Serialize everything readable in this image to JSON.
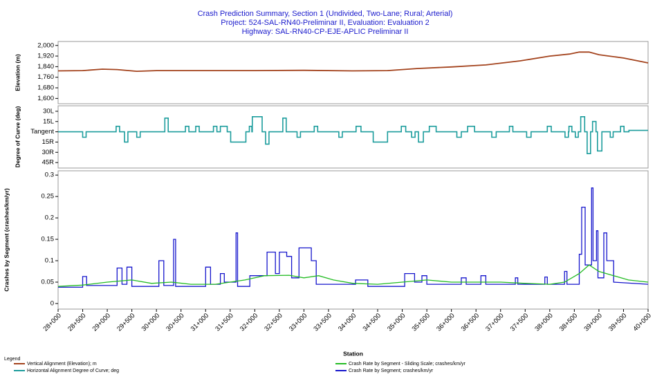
{
  "legend_title": "Legend",
  "chart_data": [
    {
      "type": "line",
      "title": "Crash Prediction Summary, Section 1 (Undivided, Two-Lane; Rural; Arterial)",
      "subtitle": [
        "Project: 524-SAL-RN40-Preliminar II, Evaluation: Evaluation 2",
        "Highway: SAL-RN40-CP-EJE-APLIC Preliminar II"
      ],
      "ylabel": "Elevation (m)",
      "xlim": [
        28000,
        40000
      ],
      "ylim": [
        1560,
        2030
      ],
      "yticks": [
        {
          "value": 1600,
          "label": "1,600"
        },
        {
          "value": 1680,
          "label": "1,680"
        },
        {
          "value": 1760,
          "label": "1,760"
        },
        {
          "value": 1840,
          "label": "1,840"
        },
        {
          "value": 1920,
          "label": "1,920"
        },
        {
          "value": 2000,
          "label": "2,000"
        }
      ],
      "series": [
        {
          "name": "Vertical Alignment (Elevation); m",
          "color": "#a3421c",
          "x": [
            28000,
            28500,
            28900,
            29200,
            29600,
            30000,
            31000,
            32000,
            33000,
            34000,
            34700,
            35300,
            36000,
            36700,
            37400,
            38000,
            38400,
            38600,
            38800,
            39000,
            39500,
            40000
          ],
          "values": [
            1808,
            1810,
            1821,
            1818,
            1805,
            1810,
            1810,
            1810,
            1812,
            1808,
            1810,
            1826,
            1838,
            1853,
            1884,
            1920,
            1935,
            1950,
            1950,
            1930,
            1905,
            1868
          ]
        }
      ]
    },
    {
      "type": "line",
      "ylabel": "Degree of Curve (deg)",
      "xlim": [
        28000,
        40000
      ],
      "ylim": [
        -53,
        38
      ],
      "yticks": [
        {
          "value": -45,
          "label": "45R"
        },
        {
          "value": -30,
          "label": "30R"
        },
        {
          "value": -15,
          "label": "15R"
        },
        {
          "value": 0,
          "label": "Tangent"
        },
        {
          "value": 15,
          "label": "15L"
        },
        {
          "value": 30,
          "label": "30L"
        }
      ],
      "series": [
        {
          "name": "Horizontal Alignment Degree of Curve; deg",
          "color": "#1b9c9c",
          "x": [
            28000,
            28500,
            28500,
            28570,
            28570,
            29180,
            29180,
            29250,
            29250,
            29350,
            29350,
            29420,
            29420,
            29600,
            29600,
            29670,
            29670,
            30170,
            30170,
            30240,
            30240,
            30590,
            30590,
            30660,
            30660,
            30800,
            30800,
            30870,
            30870,
            31160,
            31160,
            31230,
            31230,
            31300,
            31300,
            31440,
            31440,
            31510,
            31510,
            31820,
            31820,
            31890,
            31890,
            31940,
            31940,
            31950,
            31950,
            32150,
            32150,
            32220,
            32220,
            32290,
            32290,
            32570,
            32570,
            32640,
            32640,
            32860,
            32860,
            32930,
            32930,
            33210,
            33210,
            33280,
            33280,
            33710,
            33710,
            33780,
            33780,
            34060,
            34060,
            34160,
            34160,
            34410,
            34410,
            34700,
            34700,
            34980,
            34980,
            35070,
            35070,
            35190,
            35190,
            35260,
            35260,
            35330,
            35330,
            35430,
            35430,
            35550,
            35550,
            35690,
            35690,
            36110,
            36110,
            36200,
            36200,
            36330,
            36330,
            36470,
            36470,
            36820,
            36820,
            36910,
            36910,
            37180,
            37180,
            37250,
            37250,
            37530,
            37530,
            37620,
            37620,
            37950,
            37950,
            38030,
            38030,
            38310,
            38310,
            38380,
            38380,
            38390,
            38390,
            38450,
            38450,
            38520,
            38520,
            38580,
            38580,
            38630,
            38630,
            38710,
            38710,
            38760,
            38760,
            38830,
            38830,
            38870,
            38870,
            38940,
            38940,
            38970,
            38970,
            39060,
            39060,
            39230,
            39230,
            39290,
            39290,
            39440,
            39440,
            39510,
            39510,
            39610,
            39610,
            40000
          ],
          "values": [
            0,
            0,
            -8,
            -8,
            0,
            0,
            8,
            8,
            0,
            0,
            -15,
            -15,
            0,
            0,
            -8,
            -8,
            0,
            0,
            20,
            20,
            0,
            0,
            8,
            8,
            0,
            0,
            8,
            8,
            0,
            0,
            8,
            8,
            0,
            0,
            8,
            8,
            0,
            0,
            -15,
            -15,
            0,
            0,
            8,
            8,
            0,
            0,
            22,
            22,
            0,
            0,
            -18,
            -18,
            0,
            0,
            20,
            20,
            0,
            0,
            -8,
            -8,
            0,
            0,
            8,
            8,
            0,
            0,
            -8,
            -8,
            0,
            0,
            8,
            8,
            0,
            0,
            -15,
            -15,
            0,
            0,
            8,
            8,
            0,
            0,
            -8,
            -8,
            0,
            0,
            -15,
            -15,
            0,
            0,
            8,
            8,
            0,
            0,
            -8,
            -8,
            0,
            0,
            8,
            8,
            0,
            0,
            -8,
            -8,
            0,
            0,
            8,
            8,
            0,
            0,
            -8,
            -8,
            0,
            0,
            8,
            8,
            0,
            0,
            -8,
            -8,
            0,
            0,
            8,
            8,
            0,
            0,
            -8,
            -8,
            0,
            0,
            22,
            22,
            0,
            0,
            -32,
            -32,
            0,
            0,
            15,
            15,
            0,
            0,
            -28,
            -28,
            0,
            0,
            -8,
            -8,
            0,
            0,
            8,
            8,
            0,
            0,
            2,
            2
          ]
        }
      ]
    },
    {
      "type": "line",
      "ylabel": "Crashes by Segment (crashes/km/yr)",
      "xlabel": "Station",
      "xlim": [
        28000,
        40000
      ],
      "ylim": [
        -0.013,
        0.31
      ],
      "yticks": [
        0,
        0.05,
        0.1,
        0.15,
        0.2,
        0.25,
        0.3
      ],
      "xticks": [
        {
          "value": 28000,
          "label": "28+000"
        },
        {
          "value": 28500,
          "label": "28+500"
        },
        {
          "value": 29000,
          "label": "29+000"
        },
        {
          "value": 29500,
          "label": "29+500"
        },
        {
          "value": 30000,
          "label": "30+000"
        },
        {
          "value": 30500,
          "label": "30+500"
        },
        {
          "value": 31000,
          "label": "31+000"
        },
        {
          "value": 31500,
          "label": "31+500"
        },
        {
          "value": 32000,
          "label": "32+000"
        },
        {
          "value": 32500,
          "label": "32+500"
        },
        {
          "value": 33000,
          "label": "33+000"
        },
        {
          "value": 33500,
          "label": "33+500"
        },
        {
          "value": 34000,
          "label": "34+000"
        },
        {
          "value": 34500,
          "label": "34+500"
        },
        {
          "value": 35000,
          "label": "35+000"
        },
        {
          "value": 35500,
          "label": "35+500"
        },
        {
          "value": 36000,
          "label": "36+000"
        },
        {
          "value": 36500,
          "label": "36+500"
        },
        {
          "value": 37000,
          "label": "37+000"
        },
        {
          "value": 37500,
          "label": "37+500"
        },
        {
          "value": 38000,
          "label": "38+000"
        },
        {
          "value": 38500,
          "label": "38+500"
        },
        {
          "value": 39000,
          "label": "39+000"
        },
        {
          "value": 39500,
          "label": "39+500"
        },
        {
          "value": 40000,
          "label": "40+000"
        }
      ],
      "series": [
        {
          "name": "Crash Rate by Segment; crashes/km/yr",
          "color": "#1414cc",
          "x": [
            28000,
            28500,
            28500,
            28580,
            28580,
            29200,
            29200,
            29300,
            29300,
            29400,
            29400,
            29500,
            29500,
            30050,
            30050,
            30150,
            30150,
            30350,
            30350,
            30390,
            30390,
            31000,
            31000,
            31100,
            31100,
            31300,
            31300,
            31380,
            31380,
            31620,
            31620,
            31650,
            31650,
            31900,
            31900,
            32250,
            32250,
            32420,
            32420,
            32500,
            32500,
            32650,
            32650,
            32750,
            32750,
            32900,
            32900,
            33150,
            33150,
            33250,
            33250,
            34050,
            34050,
            34300,
            34300,
            35050,
            35050,
            35250,
            35250,
            35400,
            35400,
            35500,
            35500,
            36200,
            36200,
            36300,
            36300,
            36600,
            36600,
            36700,
            36700,
            37300,
            37300,
            37350,
            37350,
            37900,
            37900,
            37950,
            37950,
            38300,
            38300,
            38350,
            38350,
            38600,
            38600,
            38650,
            38650,
            38720,
            38720,
            38850,
            38850,
            38880,
            38880,
            38950,
            38950,
            38980,
            38980,
            39100,
            39100,
            39160,
            39160,
            39300,
            39300,
            40000
          ],
          "values": [
            0.038,
            0.038,
            0.063,
            0.063,
            0.042,
            0.042,
            0.083,
            0.083,
            0.045,
            0.045,
            0.085,
            0.085,
            0.04,
            0.04,
            0.1,
            0.1,
            0.042,
            0.042,
            0.15,
            0.15,
            0.04,
            0.04,
            0.085,
            0.085,
            0.045,
            0.045,
            0.07,
            0.07,
            0.05,
            0.05,
            0.165,
            0.165,
            0.04,
            0.04,
            0.065,
            0.065,
            0.12,
            0.12,
            0.07,
            0.07,
            0.12,
            0.12,
            0.11,
            0.11,
            0.06,
            0.06,
            0.13,
            0.13,
            0.1,
            0.1,
            0.045,
            0.045,
            0.055,
            0.055,
            0.04,
            0.04,
            0.07,
            0.07,
            0.05,
            0.05,
            0.065,
            0.065,
            0.045,
            0.045,
            0.06,
            0.06,
            0.045,
            0.045,
            0.065,
            0.065,
            0.045,
            0.045,
            0.06,
            0.06,
            0.045,
            0.045,
            0.062,
            0.062,
            0.045,
            0.045,
            0.075,
            0.075,
            0.045,
            0.045,
            0.115,
            0.115,
            0.225,
            0.225,
            0.09,
            0.09,
            0.27,
            0.27,
            0.1,
            0.1,
            0.17,
            0.17,
            0.06,
            0.06,
            0.165,
            0.165,
            0.1,
            0.1,
            0.05,
            0.045
          ]
        },
        {
          "name": "Crash Rate by Segment - Sliding Scale; crashes/km/yr",
          "color": "#22bb22",
          "x": [
            28000,
            28500,
            29000,
            29500,
            29900,
            30300,
            30700,
            31200,
            31800,
            32200,
            32700,
            33000,
            33300,
            33600,
            34000,
            34500,
            35000,
            35500,
            36000,
            36500,
            37000,
            37500,
            38000,
            38300,
            38600,
            38800,
            39000,
            39300,
            39600,
            40000
          ],
          "values": [
            0.04,
            0.043,
            0.05,
            0.055,
            0.047,
            0.05,
            0.045,
            0.045,
            0.055,
            0.065,
            0.066,
            0.06,
            0.065,
            0.055,
            0.047,
            0.045,
            0.05,
            0.055,
            0.05,
            0.05,
            0.05,
            0.047,
            0.045,
            0.05,
            0.07,
            0.09,
            0.075,
            0.065,
            0.055,
            0.05
          ]
        }
      ]
    }
  ]
}
